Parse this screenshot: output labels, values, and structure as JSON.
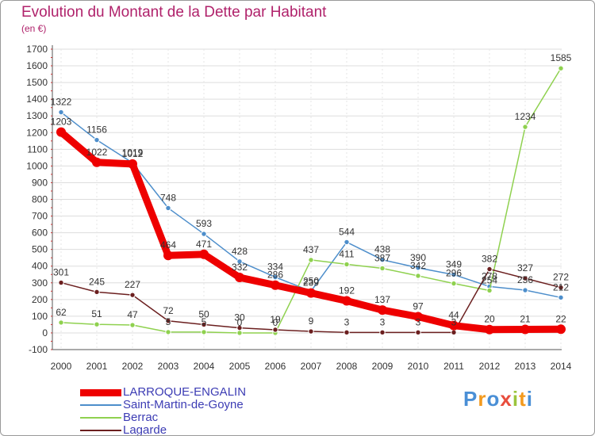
{
  "page": {
    "title": "Evolution du Montant de la Dette par Habitant",
    "unit": "(en €)",
    "brand": "Proxiti",
    "brand_colors": [
      "#4a8fd6",
      "#f39a1e",
      "#4a8fd6",
      "#e84d3d",
      "#9bc43d",
      "#f39a1e",
      "#4a8fd6"
    ]
  },
  "chart_data": {
    "type": "line",
    "title": "Evolution du Montant de la Dette par Habitant",
    "ylabel": "(en €)",
    "xlabel": "",
    "x": [
      "2000",
      "2001",
      "2002",
      "2003",
      "2004",
      "2005",
      "2006",
      "2007",
      "2008",
      "2009",
      "2010",
      "2011",
      "2012",
      "2013",
      "2014"
    ],
    "ylim": [
      -100,
      1700
    ],
    "yticks": [
      -100,
      0,
      100,
      200,
      300,
      400,
      500,
      600,
      700,
      800,
      900,
      1000,
      1100,
      1200,
      1300,
      1400,
      1500,
      1600,
      1700
    ],
    "grid": true,
    "legend_position": "bottom-left",
    "series": [
      {
        "name": "LARROQUE-ENGALIN",
        "color": "#ee0000",
        "values": [
          1203,
          1022,
          1012,
          464,
          471,
          332,
          286,
          239,
          192,
          137,
          97,
          44,
          20,
          21,
          22
        ]
      },
      {
        "name": "Saint-Martin-de-Goyne",
        "color": "#4d8ecb",
        "values": [
          1322,
          1156,
          1019,
          748,
          593,
          428,
          334,
          250,
          544,
          438,
          390,
          349,
          278,
          256,
          212
        ]
      },
      {
        "name": "Berrac",
        "color": "#8fd14f",
        "values": [
          62,
          51,
          47,
          5,
          5,
          0,
          0,
          437,
          411,
          387,
          342,
          296,
          254,
          1234,
          1585
        ]
      },
      {
        "name": "Lagarde",
        "color": "#6b1f1f",
        "values": [
          301,
          245,
          227,
          72,
          50,
          30,
          19,
          9,
          3,
          3,
          3,
          3,
          382,
          327,
          272
        ]
      }
    ]
  }
}
